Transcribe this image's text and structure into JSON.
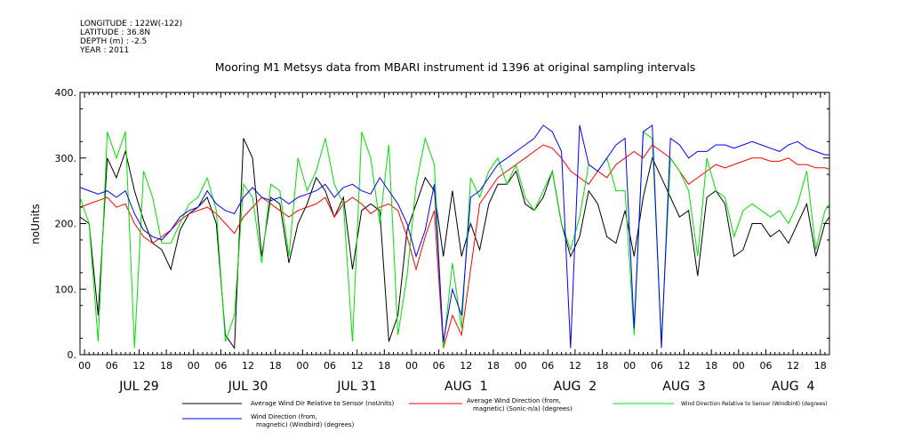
{
  "header": {
    "longitude": "LONGITUDE : 122W(-122)",
    "latitude": "LATITUDE : 36.8N",
    "depth": "DEPTH (m) : -2.5",
    "year": "YEAR : 2011"
  },
  "chart_data": {
    "type": "line",
    "title": "Mooring M1 Metsys data from MBARI instrument id 1396 at original sampling intervals",
    "ylabel": "noUnits",
    "ylim": [
      0,
      400
    ],
    "yticks": [
      "0.",
      "100.",
      "200.",
      "300.",
      "400."
    ],
    "x_hour_ticks": [
      "00",
      "06",
      "12",
      "18",
      "00",
      "06",
      "12",
      "18",
      "00",
      "06",
      "12",
      "18",
      "00",
      "06",
      "12",
      "18",
      "00",
      "06",
      "12",
      "18",
      "00",
      "06",
      "12",
      "18",
      "00",
      "06",
      "12",
      "18"
    ],
    "day_labels": [
      "JUL 29",
      "JUL 30",
      "JUL 31",
      "AUG  1",
      "AUG  2",
      "AUG  3",
      "AUG  4"
    ],
    "x_unit": "hours since JUL 29 00:00",
    "xlim": [
      -1,
      164
    ],
    "grid": false,
    "series": [
      {
        "name": "Average Wind Dir Relative to Sensor (noUnits)",
        "color": "#000000",
        "x": [
          -1,
          1,
          3,
          5,
          7,
          9,
          11,
          13,
          15,
          17,
          19,
          21,
          23,
          25,
          27,
          29,
          31,
          33,
          35,
          37,
          39,
          41,
          43,
          45,
          47,
          49,
          51,
          53,
          55,
          57,
          59,
          61,
          63,
          65,
          67,
          69,
          71,
          73,
          75,
          77,
          79,
          81,
          83,
          85,
          87,
          89,
          91,
          93,
          95,
          97,
          99,
          101,
          103,
          105,
          107,
          109,
          111,
          113,
          115,
          117,
          119,
          121,
          123,
          125,
          127,
          129,
          131,
          133,
          135,
          137,
          139,
          141,
          143,
          145,
          147,
          149,
          151,
          153,
          155,
          157,
          159,
          161,
          163,
          164
        ],
        "y": [
          210,
          200,
          60,
          300,
          270,
          310,
          250,
          205,
          170,
          160,
          130,
          190,
          215,
          225,
          240,
          200,
          30,
          10,
          330,
          300,
          150,
          240,
          230,
          140,
          200,
          230,
          270,
          250,
          210,
          240,
          130,
          220,
          230,
          220,
          20,
          60,
          190,
          230,
          270,
          250,
          150,
          250,
          150,
          200,
          160,
          230,
          260,
          260,
          280,
          230,
          220,
          240,
          280,
          200,
          150,
          180,
          250,
          230,
          180,
          170,
          220,
          150,
          240,
          300,
          270,
          240,
          210,
          220,
          120,
          240,
          250,
          230,
          150,
          160,
          200,
          200,
          180,
          190,
          170,
          200,
          230,
          150,
          200,
          210
        ]
      },
      {
        "name": "Average Wind Direction (from, magnetic) (Sonic-n/a) (degrees)",
        "color": "#ff0000",
        "x": [
          -1,
          1,
          3,
          5,
          7,
          9,
          11,
          13,
          15,
          17,
          19,
          21,
          23,
          25,
          27,
          29,
          31,
          33,
          35,
          37,
          39,
          41,
          43,
          45,
          47,
          49,
          51,
          53,
          55,
          57,
          59,
          61,
          63,
          65,
          67,
          69,
          71,
          73,
          75,
          77,
          79,
          81,
          83,
          85,
          87,
          89,
          91,
          93,
          95,
          97,
          99,
          101,
          103,
          105,
          107,
          109,
          111,
          113,
          115,
          117,
          119,
          121,
          123,
          125,
          127,
          129,
          131,
          133,
          135,
          137,
          139,
          141,
          143,
          145,
          147,
          149,
          151,
          153,
          155,
          157,
          159,
          161,
          163,
          164
        ],
        "y": [
          225,
          230,
          235,
          240,
          225,
          230,
          200,
          180,
          170,
          180,
          190,
          205,
          215,
          220,
          225,
          215,
          200,
          185,
          210,
          225,
          240,
          230,
          220,
          210,
          220,
          225,
          230,
          240,
          210,
          230,
          240,
          230,
          215,
          225,
          230,
          220,
          180,
          130,
          180,
          220,
          10,
          60,
          30,
          130,
          230,
          250,
          270,
          280,
          290,
          300,
          310,
          320,
          315,
          300,
          280,
          270,
          260,
          280,
          270,
          290,
          300,
          310,
          300,
          320,
          310,
          300,
          280,
          260,
          270,
          280,
          290,
          285,
          290,
          295,
          300,
          300,
          295,
          295,
          300,
          290,
          290,
          285,
          285,
          283
        ]
      },
      {
        "name": "Wind Direction Relative to Sensor (Windbird) (degrees)",
        "color": "#00e000",
        "x": [
          -1,
          1,
          3,
          5,
          7,
          9,
          11,
          13,
          15,
          17,
          19,
          21,
          23,
          25,
          27,
          29,
          31,
          33,
          35,
          37,
          39,
          41,
          43,
          45,
          47,
          49,
          51,
          53,
          55,
          57,
          59,
          61,
          63,
          65,
          67,
          69,
          71,
          73,
          75,
          77,
          79,
          81,
          83,
          85,
          87,
          89,
          91,
          93,
          95,
          97,
          99,
          101,
          103,
          105,
          107,
          109,
          111,
          113,
          115,
          117,
          119,
          121,
          123,
          125,
          127,
          129,
          131,
          133,
          135,
          137,
          139,
          141,
          143,
          145,
          147,
          149,
          151,
          153,
          155,
          157,
          159,
          161,
          163,
          164
        ],
        "y": [
          240,
          200,
          20,
          340,
          300,
          340,
          10,
          280,
          240,
          170,
          170,
          200,
          230,
          240,
          270,
          220,
          20,
          60,
          260,
          240,
          140,
          260,
          250,
          150,
          300,
          250,
          280,
          330,
          260,
          230,
          20,
          340,
          300,
          200,
          320,
          30,
          120,
          260,
          330,
          290,
          10,
          140,
          40,
          270,
          240,
          280,
          300,
          260,
          290,
          240,
          220,
          250,
          280,
          200,
          160,
          210,
          290,
          280,
          300,
          250,
          250,
          30,
          340,
          330,
          20,
          300,
          280,
          250,
          150,
          300,
          250,
          240,
          180,
          220,
          230,
          220,
          210,
          220,
          200,
          230,
          280,
          160,
          220,
          230
        ]
      },
      {
        "name": "Wind Direction (from, magnetic) (Windbird) (degrees)",
        "color": "#0000ff",
        "x": [
          -1,
          1,
          3,
          5,
          7,
          9,
          11,
          13,
          15,
          17,
          19,
          21,
          23,
          25,
          27,
          29,
          31,
          33,
          35,
          37,
          39,
          41,
          43,
          45,
          47,
          49,
          51,
          53,
          55,
          57,
          59,
          61,
          63,
          65,
          67,
          69,
          71,
          73,
          75,
          77,
          79,
          81,
          83,
          85,
          87,
          89,
          91,
          93,
          95,
          97,
          99,
          101,
          103,
          105,
          107,
          109,
          111,
          113,
          115,
          117,
          119,
          121,
          123,
          125,
          127,
          129,
          131,
          133,
          135,
          137,
          139,
          141,
          143,
          145,
          147,
          149,
          151,
          153,
          155,
          157,
          159,
          161,
          163,
          164
        ],
        "y": [
          255,
          250,
          245,
          250,
          240,
          250,
          215,
          190,
          180,
          175,
          190,
          210,
          220,
          225,
          250,
          230,
          220,
          215,
          240,
          255,
          240,
          235,
          240,
          230,
          240,
          245,
          250,
          260,
          240,
          255,
          260,
          250,
          245,
          270,
          250,
          230,
          200,
          150,
          190,
          260,
          20,
          100,
          60,
          240,
          250,
          270,
          290,
          300,
          310,
          320,
          330,
          350,
          340,
          310,
          10,
          350,
          290,
          280,
          300,
          320,
          330,
          40,
          340,
          350,
          10,
          330,
          320,
          300,
          310,
          310,
          320,
          320,
          315,
          320,
          325,
          320,
          315,
          310,
          320,
          325,
          315,
          310,
          305,
          305
        ]
      }
    ]
  },
  "legend": {
    "items": [
      {
        "label_line1": "Average Wind Dir Relative to Sensor (noUnits)",
        "label_line2": ""
      },
      {
        "label_line1": "Average Wind Direction (from,",
        "label_line2": "magnetic) (Sonic-n/a) (degrees)"
      },
      {
        "label_line1": "Wind Direction Relative to Sensor (Windbird) (degrees)",
        "label_line2": ""
      },
      {
        "label_line1": "Wind Direction (from,",
        "label_line2": "magnetic) (Windbird) (degrees)"
      }
    ]
  }
}
